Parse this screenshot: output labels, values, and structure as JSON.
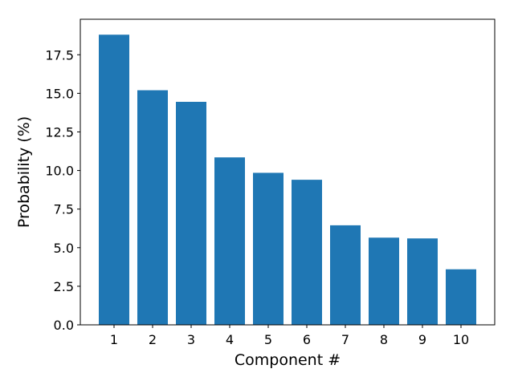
{
  "chart_data": {
    "type": "bar",
    "title": "",
    "xlabel": "Component #",
    "ylabel": "Probability (%)",
    "categories": [
      "1",
      "2",
      "3",
      "4",
      "5",
      "6",
      "7",
      "8",
      "9",
      "10"
    ],
    "values": [
      18.8,
      15.2,
      14.45,
      10.85,
      9.85,
      9.4,
      6.45,
      5.65,
      5.6,
      3.6
    ],
    "ylim": [
      0,
      19.8
    ],
    "yticks": [
      "0.0",
      "2.5",
      "5.0",
      "7.5",
      "10.0",
      "12.5",
      "15.0",
      "17.5"
    ],
    "ytick_values": [
      0,
      2.5,
      5.0,
      7.5,
      10.0,
      12.5,
      15.0,
      17.5
    ],
    "grid": false,
    "bar_color": "#1f77b4"
  }
}
